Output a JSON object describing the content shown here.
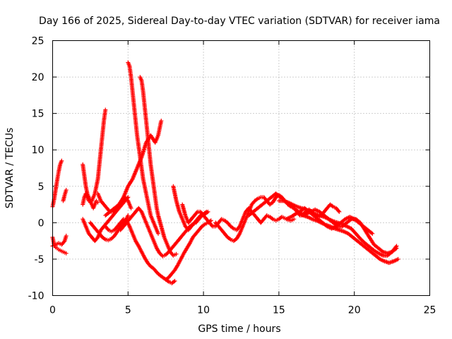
{
  "chart_data": {
    "type": "scatter",
    "title": "Day 166 of 2025, Sidereal Day-to-day VTEC variation (SDTVAR) for receiver iama",
    "xlabel": "GPS time / hours",
    "ylabel": "SDTVAR / TECUs",
    "xlim": [
      0,
      25
    ],
    "ylim": [
      -10,
      25
    ],
    "x_ticks": [
      0,
      5,
      10,
      15,
      20,
      25
    ],
    "y_ticks": [
      -10,
      -5,
      0,
      5,
      10,
      15,
      20,
      25
    ],
    "grid": true,
    "marker": "+",
    "color": "#ff0000",
    "series": [
      {
        "name": "s1",
        "x": [
          0.0,
          0.1,
          0.2,
          0.3,
          0.4,
          0.5,
          0.6
        ],
        "y": [
          2.2,
          3.2,
          4.5,
          5.8,
          7.0,
          8.0,
          8.5
        ]
      },
      {
        "name": "s2",
        "x": [
          0.0,
          0.1,
          0.2,
          0.3,
          0.4,
          0.5,
          0.6,
          0.7,
          0.8,
          0.9
        ],
        "y": [
          -2.0,
          -3.0,
          -3.4,
          -3.5,
          -3.7,
          -3.8,
          -3.9,
          -4.0,
          -4.1,
          -4.2
        ]
      },
      {
        "name": "s3",
        "x": [
          0.0,
          0.2,
          0.4,
          0.6,
          0.8,
          0.9
        ],
        "y": [
          -3.2,
          -3.0,
          -2.8,
          -3.0,
          -2.5,
          -1.8
        ]
      },
      {
        "name": "s4",
        "x": [
          0.7,
          0.8,
          0.9
        ],
        "y": [
          3.0,
          3.8,
          4.5
        ]
      },
      {
        "name": "s5",
        "x": [
          2.0,
          2.1,
          2.2,
          2.3,
          2.4,
          2.5,
          2.6,
          2.7,
          2.8,
          2.9,
          3.0
        ],
        "y": [
          8.0,
          6.5,
          5.0,
          4.0,
          3.5,
          3.0,
          2.5,
          2.0,
          2.5,
          3.0,
          2.8
        ]
      },
      {
        "name": "s6",
        "x": [
          2.0,
          2.1,
          2.2,
          2.3,
          2.4,
          2.5,
          2.6,
          2.7,
          2.8,
          2.9,
          3.0,
          3.1,
          3.2,
          3.3,
          3.4,
          3.5
        ],
        "y": [
          2.5,
          3.5,
          4.0,
          3.5,
          3.0,
          2.8,
          3.0,
          3.5,
          4.0,
          5.0,
          6.0,
          8.0,
          10.0,
          12.0,
          14.0,
          15.5
        ]
      },
      {
        "name": "s7",
        "x": [
          2.0,
          2.2,
          2.4,
          2.6,
          2.8,
          3.0,
          3.2,
          3.4,
          3.6,
          3.8,
          4.0,
          4.2,
          4.4,
          4.6,
          4.8,
          5.0
        ],
        "y": [
          0.5,
          -0.5,
          -1.5,
          -2.0,
          -2.5,
          -2.0,
          -1.0,
          -0.5,
          0.0,
          0.5,
          1.0,
          1.5,
          2.0,
          2.5,
          3.0,
          3.5
        ]
      },
      {
        "name": "s8",
        "x": [
          2.5,
          2.7,
          2.9,
          3.1,
          3.3,
          3.5,
          3.7,
          3.9,
          4.1,
          4.3,
          4.5,
          4.7,
          4.9,
          5.0
        ],
        "y": [
          0.0,
          -0.5,
          -1.0,
          -1.5,
          -2.0,
          -2.3,
          -2.4,
          -2.2,
          -1.8,
          -1.2,
          -0.5,
          0.0,
          0.5,
          1.0
        ]
      },
      {
        "name": "s9",
        "x": [
          3.0,
          3.2,
          3.4,
          3.6,
          3.8,
          4.0,
          4.2,
          4.4,
          4.6,
          4.8,
          5.0,
          5.2
        ],
        "y": [
          4.0,
          3.0,
          2.5,
          2.0,
          1.5,
          1.5,
          2.0,
          2.5,
          3.0,
          3.5,
          3.0,
          2.0
        ]
      },
      {
        "name": "s10",
        "x": [
          3.5,
          3.7,
          3.9,
          4.1,
          4.3,
          4.5,
          4.7,
          4.9,
          5.1,
          5.3,
          5.5,
          5.7,
          5.9,
          6.1,
          6.3,
          6.5,
          6.7,
          6.9,
          7.1,
          7.3,
          7.5,
          7.7,
          7.9,
          8.1
        ],
        "y": [
          -0.5,
          -1.0,
          -1.2,
          -1.0,
          -0.5,
          0.0,
          0.5,
          0.3,
          -0.5,
          -1.5,
          -2.5,
          -3.2,
          -4.0,
          -4.8,
          -5.5,
          -6.0,
          -6.3,
          -6.8,
          -7.2,
          -7.5,
          -7.8,
          -8.1,
          -8.3,
          -8.0
        ]
      },
      {
        "name": "s11",
        "x": [
          5.0,
          5.1,
          5.2,
          5.3,
          5.4,
          5.5,
          5.6,
          5.7,
          5.8,
          5.9,
          6.0,
          6.1,
          6.2,
          6.3,
          6.4,
          6.5,
          6.6,
          6.7,
          6.8,
          6.9,
          7.0
        ],
        "y": [
          22.0,
          21.5,
          20.0,
          18.0,
          16.0,
          14.0,
          12.0,
          10.5,
          9.0,
          7.5,
          6.0,
          5.0,
          4.0,
          3.0,
          2.0,
          1.0,
          0.5,
          0.0,
          -0.5,
          -1.0,
          -1.5
        ]
      },
      {
        "name": "s12",
        "x": [
          5.8,
          5.9,
          6.0,
          6.1,
          6.2,
          6.3,
          6.4,
          6.5,
          6.6,
          6.7,
          6.8,
          6.9,
          7.0,
          7.2,
          7.4,
          7.6,
          7.8,
          8.0,
          8.2
        ],
        "y": [
          20.0,
          19.5,
          18.0,
          16.0,
          14.0,
          12.0,
          10.0,
          8.0,
          6.5,
          5.0,
          3.5,
          2.0,
          1.0,
          -0.5,
          -2.0,
          -3.0,
          -4.0,
          -4.5,
          -4.3
        ]
      },
      {
        "name": "s13",
        "x": [
          3.5,
          3.8,
          4.1,
          4.4,
          4.7,
          5.0,
          5.3,
          5.6,
          5.9,
          6.2,
          6.5,
          6.8,
          7.0,
          7.1,
          7.2
        ],
        "y": [
          1.0,
          1.5,
          2.0,
          2.5,
          3.5,
          5.0,
          6.0,
          7.5,
          9.0,
          11.0,
          12.0,
          11.0,
          12.0,
          13.0,
          14.0
        ]
      },
      {
        "name": "s14",
        "x": [
          4.5,
          4.7,
          4.9,
          5.1,
          5.3,
          5.5,
          5.7,
          5.9,
          6.1,
          6.3,
          6.5,
          6.7,
          6.9,
          7.1,
          7.3,
          7.5,
          7.7,
          7.9,
          8.1,
          8.3,
          8.5,
          8.7,
          8.9,
          9.1,
          9.3,
          9.5,
          9.7,
          9.9,
          10.1,
          10.3
        ],
        "y": [
          -1.0,
          -0.5,
          0.0,
          0.5,
          1.0,
          1.5,
          2.0,
          1.5,
          0.5,
          -0.5,
          -1.5,
          -2.5,
          -3.5,
          -4.2,
          -4.6,
          -4.4,
          -4.0,
          -3.5,
          -3.0,
          -2.5,
          -2.0,
          -1.5,
          -1.0,
          -0.5,
          -0.2,
          0.0,
          0.5,
          1.0,
          1.2,
          1.5
        ]
      },
      {
        "name": "s15",
        "x": [
          7.5,
          7.7,
          7.9,
          8.1,
          8.3,
          8.5,
          8.7,
          8.9,
          9.1,
          9.3,
          9.5,
          9.7,
          9.9,
          10.1,
          10.3,
          10.5
        ],
        "y": [
          -7.8,
          -7.5,
          -7.0,
          -6.5,
          -5.8,
          -5.0,
          -4.2,
          -3.5,
          -2.8,
          -2.0,
          -1.5,
          -1.0,
          -0.5,
          -0.2,
          0.0,
          0.3
        ]
      },
      {
        "name": "s16",
        "x": [
          8.0,
          8.2,
          8.4,
          8.6,
          8.8,
          9.0,
          9.2,
          9.4,
          9.6,
          9.8,
          10.0,
          10.2
        ],
        "y": [
          5.0,
          3.0,
          1.5,
          0.5,
          -0.5,
          -1.0,
          -0.5,
          0.0,
          0.5,
          1.0,
          1.2,
          1.5
        ]
      },
      {
        "name": "s17",
        "x": [
          8.6,
          8.8,
          9.0,
          9.2,
          9.4,
          9.6,
          9.8,
          10.0,
          10.2,
          10.4,
          10.6,
          10.8,
          11.0,
          11.2,
          11.4,
          11.6,
          11.8,
          12.0,
          12.2,
          12.4,
          12.6,
          12.8,
          13.0,
          13.2,
          13.4,
          13.6,
          13.8,
          14.0,
          14.2,
          14.4,
          14.6,
          14.8,
          15.0,
          15.2,
          15.4,
          15.6,
          15.8,
          16.0
        ],
        "y": [
          2.5,
          1.0,
          0.0,
          0.5,
          1.0,
          1.5,
          1.5,
          1.0,
          0.5,
          0.0,
          -0.5,
          -0.5,
          0.0,
          0.5,
          0.3,
          0.0,
          -0.5,
          -0.8,
          -1.0,
          -0.5,
          0.5,
          1.5,
          2.0,
          1.5,
          1.0,
          0.5,
          0.0,
          0.5,
          1.0,
          0.8,
          0.5,
          0.3,
          0.5,
          0.8,
          0.6,
          0.4,
          0.3,
          0.5
        ]
      },
      {
        "name": "s18",
        "x": [
          10.8,
          11.0,
          11.2,
          11.4,
          11.6,
          11.8,
          12.0,
          12.2,
          12.4,
          12.6,
          12.8,
          13.0,
          13.2,
          13.4,
          13.6,
          13.8,
          14.0,
          14.2,
          14.4,
          14.6,
          14.8,
          15.0,
          15.2,
          15.4,
          15.6,
          15.8,
          16.0,
          16.2,
          16.4,
          16.6,
          16.8,
          17.0,
          17.2,
          17.4,
          17.6,
          17.8,
          18.0,
          18.2,
          18.4,
          18.6,
          18.8,
          19.0
        ],
        "y": [
          0.0,
          -0.5,
          -1.0,
          -1.5,
          -2.0,
          -2.3,
          -2.5,
          -2.2,
          -1.5,
          -0.5,
          0.5,
          1.5,
          2.5,
          3.0,
          3.3,
          3.5,
          3.5,
          3.0,
          2.5,
          2.8,
          3.5,
          3.8,
          3.5,
          3.0,
          2.5,
          2.2,
          2.0,
          1.5,
          1.0,
          1.2,
          1.5,
          1.8,
          1.5,
          1.0,
          0.8,
          1.0,
          1.5,
          2.0,
          2.5,
          2.2,
          2.0,
          1.5
        ]
      },
      {
        "name": "s19",
        "x": [
          13.0,
          13.3,
          13.6,
          13.9,
          14.2,
          14.5,
          14.8,
          15.1,
          15.4,
          15.7,
          16.0,
          16.3,
          16.6,
          16.9,
          17.2,
          17.5,
          17.8,
          18.1,
          18.4,
          18.7,
          19.0,
          19.3,
          19.6,
          19.9,
          20.2,
          20.5,
          20.8,
          21.1,
          21.4,
          21.7,
          22.0,
          22.3,
          22.6,
          22.9
        ],
        "y": [
          1.0,
          1.5,
          2.0,
          2.5,
          3.0,
          3.5,
          4.0,
          3.5,
          3.0,
          2.5,
          2.0,
          1.5,
          1.0,
          0.8,
          0.5,
          0.3,
          0.0,
          -0.3,
          -0.5,
          -0.8,
          -1.0,
          -1.2,
          -1.5,
          -2.0,
          -2.5,
          -3.0,
          -3.5,
          -4.0,
          -4.5,
          -5.0,
          -5.3,
          -5.5,
          -5.3,
          -5.0
        ]
      },
      {
        "name": "s20",
        "x": [
          15.0,
          15.3,
          15.6,
          15.9,
          16.2,
          16.5,
          16.8,
          17.1,
          17.4,
          17.7,
          18.0,
          18.3,
          18.6,
          18.9,
          19.2,
          19.5,
          19.8,
          20.1,
          20.4,
          20.7,
          21.0,
          21.3,
          21.6,
          21.9,
          22.2,
          22.5,
          22.8
        ],
        "y": [
          3.0,
          3.0,
          2.8,
          2.5,
          2.2,
          2.0,
          1.8,
          1.5,
          1.2,
          1.0,
          0.8,
          0.5,
          0.2,
          0.0,
          -0.2,
          -0.5,
          -0.8,
          -1.5,
          -2.2,
          -2.8,
          -3.3,
          -3.8,
          -4.2,
          -4.5,
          -4.5,
          -4.0,
          -3.5
        ]
      },
      {
        "name": "s21",
        "x": [
          16.5,
          16.8,
          17.1,
          17.4,
          17.7,
          18.0,
          18.3,
          18.6,
          18.9,
          19.2,
          19.5,
          19.8,
          20.1,
          20.4,
          20.7,
          21.0,
          21.3,
          21.6,
          21.9,
          22.2,
          22.5,
          22.8
        ],
        "y": [
          1.0,
          1.2,
          1.5,
          1.8,
          1.5,
          1.0,
          0.5,
          0.0,
          -0.5,
          -0.5,
          0.0,
          0.5,
          0.5,
          0.0,
          -1.0,
          -2.0,
          -3.0,
          -3.5,
          -4.0,
          -4.2,
          -4.0,
          -3.2
        ]
      },
      {
        "name": "s22",
        "x": [
          15.5,
          15.8,
          16.1,
          16.4,
          16.7,
          17.0,
          17.3,
          17.6,
          17.9,
          18.2,
          18.5,
          18.8,
          19.1,
          19.4,
          19.7,
          20.0,
          20.3,
          20.6,
          20.9,
          21.2
        ],
        "y": [
          0.5,
          0.8,
          1.2,
          1.5,
          2.0,
          1.5,
          1.0,
          0.5,
          0.0,
          -0.5,
          -0.8,
          -0.5,
          0.0,
          0.5,
          0.8,
          0.5,
          0.0,
          -0.5,
          -1.0,
          -1.5
        ]
      }
    ]
  }
}
